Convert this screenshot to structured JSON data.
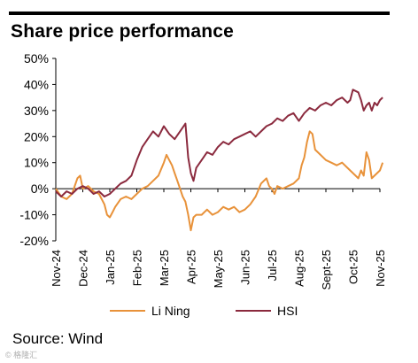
{
  "title": "Share price performance",
  "source": "Source: Wind",
  "watermark": "© 格隆汇",
  "colors": {
    "li_ning": "#E8923A",
    "hsi": "#8B2A3E",
    "axis": "#000000",
    "text": "#000000"
  },
  "chart_data": {
    "type": "line",
    "title": "Share price performance",
    "y_tick_labels": [
      "50%",
      "40%",
      "30%",
      "20%",
      "10%",
      "0%",
      "-10%",
      "-20%"
    ],
    "x_tick_labels": [
      "Nov-24",
      "Dec-24",
      "Jan-25",
      "Feb-25",
      "Mar-25",
      "Apr-25",
      "May-25",
      "Jun-25",
      "Jul-25",
      "Aug-25",
      "Sept-25",
      "Oct-25",
      "Nov-25"
    ],
    "ylim": [
      -20,
      50
    ],
    "grid": false,
    "legend": "bottom",
    "series": [
      {
        "name": "Li Ning",
        "color": "#E8923A",
        "points": [
          [
            0.0,
            0.0
          ],
          [
            0.2,
            -3.0
          ],
          [
            0.4,
            -4.0
          ],
          [
            0.6,
            -2.0
          ],
          [
            0.8,
            4.0
          ],
          [
            0.9,
            5.0
          ],
          [
            1.0,
            0.0
          ],
          [
            1.2,
            1.0
          ],
          [
            1.4,
            -1.0
          ],
          [
            1.6,
            -2.0
          ],
          [
            1.8,
            -6.0
          ],
          [
            1.9,
            -10.0
          ],
          [
            2.0,
            -11.0
          ],
          [
            2.1,
            -9.0
          ],
          [
            2.2,
            -7.0
          ],
          [
            2.4,
            -4.0
          ],
          [
            2.6,
            -3.0
          ],
          [
            2.8,
            -4.0
          ],
          [
            3.0,
            -2.0
          ],
          [
            3.2,
            0.0
          ],
          [
            3.4,
            1.0
          ],
          [
            3.6,
            3.0
          ],
          [
            3.8,
            5.0
          ],
          [
            4.0,
            10.0
          ],
          [
            4.1,
            13.0
          ],
          [
            4.2,
            11.0
          ],
          [
            4.3,
            9.0
          ],
          [
            4.4,
            6.0
          ],
          [
            4.5,
            3.0
          ],
          [
            4.6,
            0.0
          ],
          [
            4.7,
            -3.0
          ],
          [
            4.8,
            -5.0
          ],
          [
            4.9,
            -10.0
          ],
          [
            5.0,
            -16.0
          ],
          [
            5.1,
            -11.0
          ],
          [
            5.2,
            -10.0
          ],
          [
            5.4,
            -10.0
          ],
          [
            5.6,
            -8.0
          ],
          [
            5.8,
            -10.0
          ],
          [
            6.0,
            -9.0
          ],
          [
            6.2,
            -7.0
          ],
          [
            6.4,
            -8.0
          ],
          [
            6.6,
            -7.0
          ],
          [
            6.8,
            -9.0
          ],
          [
            7.0,
            -8.0
          ],
          [
            7.2,
            -6.0
          ],
          [
            7.4,
            -3.0
          ],
          [
            7.6,
            2.0
          ],
          [
            7.8,
            4.0
          ],
          [
            7.9,
            1.0
          ],
          [
            8.0,
            0.0
          ],
          [
            8.1,
            -2.0
          ],
          [
            8.2,
            1.0
          ],
          [
            8.4,
            0.0
          ],
          [
            8.6,
            1.0
          ],
          [
            8.8,
            2.0
          ],
          [
            9.0,
            4.0
          ],
          [
            9.1,
            9.0
          ],
          [
            9.2,
            12.0
          ],
          [
            9.3,
            18.0
          ],
          [
            9.4,
            22.0
          ],
          [
            9.5,
            21.0
          ],
          [
            9.6,
            15.0
          ],
          [
            9.7,
            14.0
          ],
          [
            9.8,
            13.0
          ],
          [
            10.0,
            11.0
          ],
          [
            10.2,
            10.0
          ],
          [
            10.4,
            9.0
          ],
          [
            10.6,
            10.0
          ],
          [
            10.8,
            8.0
          ],
          [
            11.0,
            6.0
          ],
          [
            11.1,
            5.0
          ],
          [
            11.2,
            4.0
          ],
          [
            11.3,
            7.0
          ],
          [
            11.4,
            5.0
          ],
          [
            11.5,
            14.0
          ],
          [
            11.6,
            11.0
          ],
          [
            11.7,
            4.0
          ],
          [
            11.8,
            5.0
          ],
          [
            12.0,
            7.0
          ],
          [
            12.1,
            10.0
          ]
        ]
      },
      {
        "name": "HSI",
        "color": "#8B2A3E",
        "points": [
          [
            0.0,
            -1.0
          ],
          [
            0.2,
            -3.0
          ],
          [
            0.4,
            -1.0
          ],
          [
            0.6,
            -2.0
          ],
          [
            0.8,
            0.0
          ],
          [
            1.0,
            1.0
          ],
          [
            1.2,
            0.0
          ],
          [
            1.4,
            -2.0
          ],
          [
            1.6,
            -1.0
          ],
          [
            1.8,
            -3.0
          ],
          [
            2.0,
            -2.0
          ],
          [
            2.2,
            0.0
          ],
          [
            2.4,
            2.0
          ],
          [
            2.6,
            3.0
          ],
          [
            2.8,
            5.0
          ],
          [
            3.0,
            11.0
          ],
          [
            3.2,
            16.0
          ],
          [
            3.4,
            19.0
          ],
          [
            3.6,
            22.0
          ],
          [
            3.8,
            20.0
          ],
          [
            4.0,
            24.0
          ],
          [
            4.2,
            21.0
          ],
          [
            4.4,
            19.0
          ],
          [
            4.6,
            22.0
          ],
          [
            4.8,
            25.0
          ],
          [
            4.9,
            12.0
          ],
          [
            5.0,
            6.0
          ],
          [
            5.1,
            3.0
          ],
          [
            5.2,
            8.0
          ],
          [
            5.4,
            11.0
          ],
          [
            5.6,
            14.0
          ],
          [
            5.8,
            13.0
          ],
          [
            6.0,
            16.0
          ],
          [
            6.2,
            18.0
          ],
          [
            6.4,
            17.0
          ],
          [
            6.6,
            19.0
          ],
          [
            6.8,
            20.0
          ],
          [
            7.0,
            21.0
          ],
          [
            7.2,
            22.0
          ],
          [
            7.4,
            20.0
          ],
          [
            7.6,
            22.0
          ],
          [
            7.8,
            24.0
          ],
          [
            8.0,
            25.0
          ],
          [
            8.2,
            27.0
          ],
          [
            8.4,
            26.0
          ],
          [
            8.6,
            28.0
          ],
          [
            8.8,
            29.0
          ],
          [
            9.0,
            26.0
          ],
          [
            9.2,
            29.0
          ],
          [
            9.4,
            31.0
          ],
          [
            9.6,
            30.0
          ],
          [
            9.8,
            32.0
          ],
          [
            10.0,
            33.0
          ],
          [
            10.2,
            32.0
          ],
          [
            10.4,
            34.0
          ],
          [
            10.6,
            35.0
          ],
          [
            10.8,
            33.0
          ],
          [
            10.9,
            34.0
          ],
          [
            11.0,
            38.0
          ],
          [
            11.2,
            37.0
          ],
          [
            11.3,
            34.0
          ],
          [
            11.4,
            30.0
          ],
          [
            11.5,
            32.0
          ],
          [
            11.6,
            33.0
          ],
          [
            11.7,
            30.0
          ],
          [
            11.8,
            33.0
          ],
          [
            11.9,
            32.0
          ],
          [
            12.0,
            34.0
          ],
          [
            12.1,
            35.0
          ]
        ]
      }
    ]
  }
}
